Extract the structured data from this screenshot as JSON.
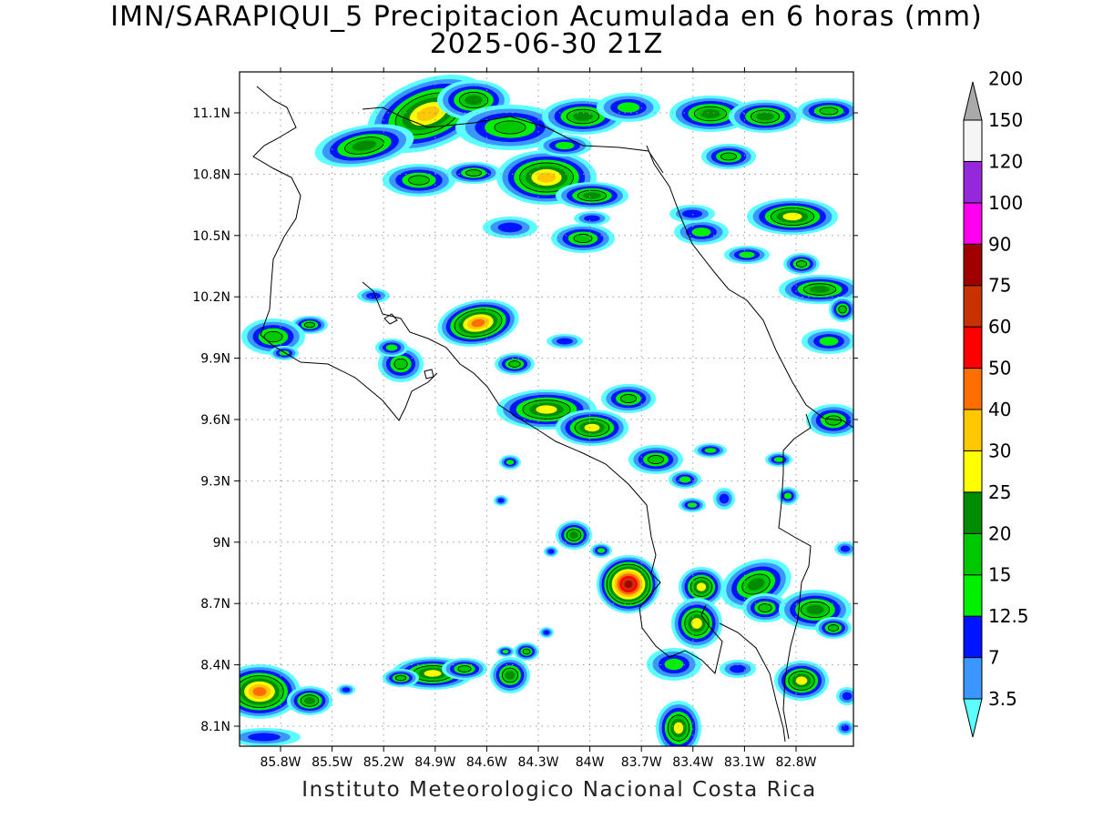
{
  "title": {
    "line1": "IMN/SARAPIQUI_5 Precipitacion Acumulada en 6 horas (mm)",
    "line2": "2025-06-30 21Z"
  },
  "footer": "Instituto Meteorologico Nacional Costa Rica",
  "map": {
    "lon_range": [
      -86.12,
      -83.0
    ],
    "lon_ticks": [
      "85.8W",
      "85.5W",
      "85.2W",
      "84.9W",
      "84.6W",
      "84.3W",
      "84W",
      "83.7W",
      "83.4W",
      "83.1W",
      "82.8W"
    ],
    "lat_ticks": [
      "11.1N",
      "10.8N",
      "10.5N",
      "10.2N",
      "9.9N",
      "9.6N",
      "9.3N",
      "9N",
      "8.7N",
      "8.4N",
      "8.1N"
    ],
    "grid": true
  },
  "colorbar": {
    "labels": [
      "3.5",
      "7",
      "12.5",
      "15",
      "20",
      "25",
      "30",
      "40",
      "50",
      "60",
      "75",
      "90",
      "100",
      "120",
      "150",
      "200"
    ],
    "colors": [
      "#5cffff",
      "#3c96ff",
      "#0014ff",
      "#00f000",
      "#00c800",
      "#008c00",
      "#ffff00",
      "#ffc800",
      "#ff6e00",
      "#ff0000",
      "#c83200",
      "#a00000",
      "#ff00f0",
      "#9628dc",
      "#f5f5f5",
      "#aaaaaa"
    ]
  }
}
